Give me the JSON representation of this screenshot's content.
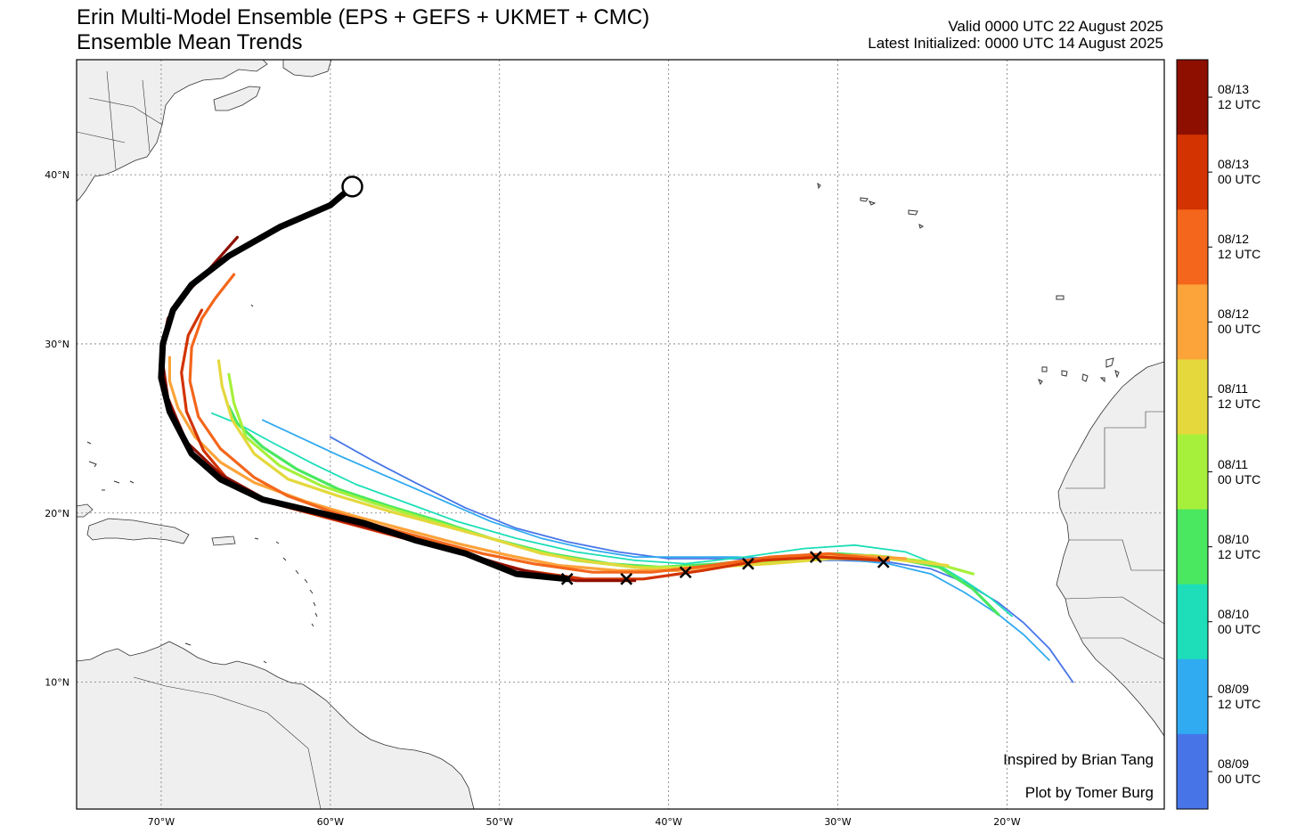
{
  "header": {
    "title_line1": "Erin Multi-Model Ensemble (EPS + GEFS + UKMET + CMC)",
    "title_line2": "Ensemble Mean Trends",
    "valid": "Valid 0000 UTC 22 August 2025",
    "initialized": "Latest Initialized: 0000 UTC 14 August 2025"
  },
  "credits": {
    "inspired": "Inspired by Brian Tang",
    "plot_by": "Plot by Tomer Burg"
  },
  "axes": {
    "lon_labels": [
      "70°W",
      "60°W",
      "50°W",
      "40°W",
      "30°W",
      "20°W"
    ],
    "lat_labels": [
      "40°N",
      "30°N",
      "20°N",
      "10°N"
    ],
    "lon_range": [
      -75,
      -10.7
    ],
    "lat_range": [
      2.5,
      46.8
    ],
    "grid": true
  },
  "legend": {
    "colors": [
      "#8e0f00",
      "#d33300",
      "#f3661b",
      "#fca33a",
      "#e4d83c",
      "#a6f03c",
      "#49e860",
      "#1ddeb8",
      "#30aaf0",
      "#4775e8"
    ],
    "labels": [
      [
        "08/13",
        "12 UTC"
      ],
      [
        "08/13",
        "00 UTC"
      ],
      [
        "08/12",
        "12 UTC"
      ],
      [
        "08/12",
        "00 UTC"
      ],
      [
        "08/11",
        "12 UTC"
      ],
      [
        "08/11",
        "00 UTC"
      ],
      [
        "08/10",
        "12 UTC"
      ],
      [
        "08/10",
        "00 UTC"
      ],
      [
        "08/09",
        "12 UTC"
      ],
      [
        "08/09",
        "00 UTC"
      ]
    ]
  },
  "chart_data": {
    "type": "line",
    "x_unit": "longitude (degrees, negative = W)",
    "y_unit": "latitude (degrees N)",
    "series": [
      {
        "color": "#4775e8",
        "lonlat": [
          [
            -16.1,
            10.0
          ],
          [
            -17.5,
            12.0
          ],
          [
            -19.0,
            13.5
          ],
          [
            -20.5,
            14.7
          ],
          [
            -22.5,
            15.9
          ],
          [
            -24.5,
            16.7
          ],
          [
            -27.0,
            17.1
          ],
          [
            -30.0,
            17.2
          ],
          [
            -33.0,
            17.2
          ],
          [
            -36.5,
            17.3
          ],
          [
            -40.0,
            17.3
          ],
          [
            -43.0,
            17.7
          ],
          [
            -46.0,
            18.3
          ],
          [
            -49.0,
            19.1
          ],
          [
            -52.0,
            20.3
          ],
          [
            -55.0,
            21.8
          ],
          [
            -57.5,
            23.1
          ],
          [
            -60.0,
            24.5
          ]
        ]
      },
      {
        "color": "#30aaf0",
        "lonlat": [
          [
            -17.5,
            11.3
          ],
          [
            -19.0,
            12.8
          ],
          [
            -20.5,
            14.0
          ],
          [
            -22.5,
            15.3
          ],
          [
            -24.5,
            16.4
          ],
          [
            -27.0,
            17.0
          ],
          [
            -30.0,
            17.3
          ],
          [
            -33.0,
            17.3
          ],
          [
            -36.0,
            17.4
          ],
          [
            -39.0,
            17.4
          ],
          [
            -42.0,
            17.4
          ],
          [
            -44.5,
            17.8
          ],
          [
            -47.5,
            18.5
          ],
          [
            -50.5,
            19.5
          ],
          [
            -53.5,
            20.8
          ],
          [
            -56.5,
            22.1
          ],
          [
            -59.5,
            23.4
          ],
          [
            -62.5,
            24.8
          ],
          [
            -64.0,
            25.5
          ]
        ]
      },
      {
        "color": "#1ddeb8",
        "lonlat": [
          [
            -19.7,
            13.9
          ],
          [
            -21.0,
            15.0
          ],
          [
            -22.5,
            16.0
          ],
          [
            -24.0,
            16.9
          ],
          [
            -26.0,
            17.7
          ],
          [
            -29.0,
            18.1
          ],
          [
            -32.0,
            17.9
          ],
          [
            -35.5,
            17.4
          ],
          [
            -39.0,
            17.0
          ],
          [
            -42.0,
            17.2
          ],
          [
            -45.5,
            17.7
          ],
          [
            -49.0,
            18.5
          ],
          [
            -52.5,
            19.5
          ],
          [
            -55.5,
            20.6
          ],
          [
            -58.5,
            21.7
          ],
          [
            -61.0,
            22.9
          ],
          [
            -63.5,
            24.2
          ],
          [
            -65.5,
            25.3
          ],
          [
            -67.0,
            25.9
          ]
        ]
      },
      {
        "color": "#49e860",
        "lonlat": [
          [
            -20.5,
            14.0
          ],
          [
            -22.0,
            15.5
          ],
          [
            -24.0,
            16.8
          ],
          [
            -27.0,
            17.4
          ],
          [
            -30.0,
            17.6
          ],
          [
            -33.5,
            17.4
          ],
          [
            -37.0,
            17.0
          ],
          [
            -40.5,
            16.8
          ],
          [
            -43.5,
            17.0
          ],
          [
            -47.0,
            17.6
          ],
          [
            -50.5,
            18.5
          ],
          [
            -53.5,
            19.5
          ],
          [
            -56.5,
            20.4
          ],
          [
            -59.5,
            21.4
          ],
          [
            -62.0,
            22.6
          ],
          [
            -64.0,
            23.9
          ],
          [
            -65.5,
            25.3
          ],
          [
            -66.0,
            26.3
          ]
        ]
      },
      {
        "color": "#a6f03c",
        "lonlat": [
          [
            -22.0,
            16.4
          ],
          [
            -24.5,
            17.1
          ],
          [
            -28.0,
            17.5
          ],
          [
            -31.5,
            17.3
          ],
          [
            -35.0,
            17.0
          ],
          [
            -38.5,
            16.8
          ],
          [
            -42.0,
            16.8
          ],
          [
            -45.5,
            17.2
          ],
          [
            -48.5,
            17.9
          ],
          [
            -51.5,
            18.8
          ],
          [
            -54.5,
            19.7
          ],
          [
            -57.5,
            20.6
          ],
          [
            -60.5,
            21.6
          ],
          [
            -63.0,
            22.8
          ],
          [
            -65.0,
            24.5
          ],
          [
            -65.7,
            26.5
          ],
          [
            -66.0,
            28.2
          ]
        ]
      },
      {
        "color": "#e4d83c",
        "lonlat": [
          [
            -23.5,
            16.9
          ],
          [
            -27.0,
            17.3
          ],
          [
            -30.5,
            17.3
          ],
          [
            -34.0,
            17.0
          ],
          [
            -37.5,
            16.8
          ],
          [
            -41.0,
            16.7
          ],
          [
            -44.5,
            17.1
          ],
          [
            -47.5,
            17.6
          ],
          [
            -50.5,
            18.5
          ],
          [
            -53.5,
            19.3
          ],
          [
            -56.5,
            20.1
          ],
          [
            -59.5,
            21.0
          ],
          [
            -62.5,
            22.0
          ],
          [
            -64.5,
            23.5
          ],
          [
            -65.8,
            25.5
          ],
          [
            -66.4,
            27.5
          ],
          [
            -66.6,
            29.0
          ]
        ]
      },
      {
        "color": "#fca33a",
        "lonlat": [
          [
            -26.0,
            17.3
          ],
          [
            -29.0,
            17.5
          ],
          [
            -32.5,
            17.4
          ],
          [
            -36.0,
            17.0
          ],
          [
            -39.5,
            16.6
          ],
          [
            -43.0,
            16.6
          ],
          [
            -46.5,
            16.9
          ],
          [
            -49.5,
            17.5
          ],
          [
            -52.5,
            18.2
          ],
          [
            -55.5,
            19.0
          ],
          [
            -58.5,
            19.8
          ],
          [
            -61.5,
            20.7
          ],
          [
            -64.5,
            21.8
          ],
          [
            -66.5,
            23.0
          ],
          [
            -68.0,
            24.5
          ],
          [
            -69.0,
            26.2
          ],
          [
            -69.5,
            27.8
          ],
          [
            -69.5,
            29.2
          ]
        ]
      },
      {
        "color": "#f3661b",
        "lonlat": [
          [
            -27.0,
            17.2
          ],
          [
            -30.5,
            17.6
          ],
          [
            -34.0,
            17.4
          ],
          [
            -37.5,
            16.9
          ],
          [
            -41.0,
            16.5
          ],
          [
            -44.5,
            16.5
          ],
          [
            -48.0,
            17.0
          ],
          [
            -51.0,
            17.6
          ],
          [
            -54.0,
            18.4
          ],
          [
            -57.0,
            19.2
          ],
          [
            -60.0,
            20.1
          ],
          [
            -62.5,
            21.0
          ],
          [
            -64.5,
            22.1
          ],
          [
            -66.5,
            23.8
          ],
          [
            -67.8,
            25.7
          ],
          [
            -68.3,
            27.8
          ],
          [
            -68.2,
            29.8
          ],
          [
            -67.6,
            31.5
          ],
          [
            -66.8,
            32.7
          ],
          [
            -65.7,
            34.1
          ]
        ]
      },
      {
        "color": "#d33300",
        "lonlat": [
          [
            -27.5,
            17.2
          ],
          [
            -31.0,
            17.4
          ],
          [
            -34.5,
            17.2
          ],
          [
            -38.0,
            16.6
          ],
          [
            -41.5,
            16.1
          ],
          [
            -45.0,
            16.1
          ],
          [
            -48.5,
            16.6
          ],
          [
            -51.5,
            17.4
          ],
          [
            -54.5,
            18.2
          ],
          [
            -57.5,
            19.0
          ],
          [
            -60.5,
            19.8
          ],
          [
            -63.5,
            20.6
          ],
          [
            -66.0,
            21.9
          ],
          [
            -67.5,
            23.7
          ],
          [
            -68.5,
            26.0
          ],
          [
            -68.8,
            28.3
          ],
          [
            -68.4,
            30.5
          ],
          [
            -67.6,
            32.0
          ]
        ]
      },
      {
        "color": "#8e0f00",
        "lonlat": [
          [
            -42.0,
            16.0
          ],
          [
            -45.5,
            16.0
          ],
          [
            -49.0,
            16.7
          ],
          [
            -52.0,
            17.6
          ],
          [
            -55.0,
            18.4
          ],
          [
            -58.0,
            19.2
          ],
          [
            -61.0,
            20.0
          ],
          [
            -64.0,
            20.9
          ],
          [
            -66.5,
            22.3
          ],
          [
            -68.5,
            24.2
          ],
          [
            -69.6,
            26.8
          ],
          [
            -70.0,
            29.5
          ],
          [
            -69.6,
            31.5
          ],
          [
            -68.5,
            33.0
          ],
          [
            -67.0,
            34.6
          ],
          [
            -65.5,
            36.3
          ]
        ]
      },
      {
        "color": "#000000",
        "width": 7,
        "lonlat": [
          [
            -46.0,
            16.1
          ],
          [
            -49.0,
            16.4
          ],
          [
            -52.0,
            17.6
          ],
          [
            -55.0,
            18.4
          ],
          [
            -58.0,
            19.4
          ],
          [
            -61.0,
            20.1
          ],
          [
            -64.0,
            20.8
          ],
          [
            -66.5,
            22.0
          ],
          [
            -68.2,
            23.5
          ],
          [
            -69.5,
            26.0
          ],
          [
            -70.0,
            28.0
          ],
          [
            -69.9,
            30.0
          ],
          [
            -69.3,
            32.0
          ],
          [
            -68.2,
            33.5
          ],
          [
            -66.0,
            35.2
          ],
          [
            -63.0,
            36.9
          ],
          [
            -60.0,
            38.2
          ],
          [
            -58.7,
            39.3
          ]
        ]
      }
    ],
    "markers": {
      "x_marks": [
        [
          -46.0,
          16.1
        ],
        [
          -42.5,
          16.1
        ],
        [
          -39.0,
          16.5
        ],
        [
          -35.3,
          17.0
        ],
        [
          -31.3,
          17.4
        ],
        [
          -27.3,
          17.1
        ]
      ],
      "circle": [
        -58.7,
        39.3
      ]
    }
  }
}
